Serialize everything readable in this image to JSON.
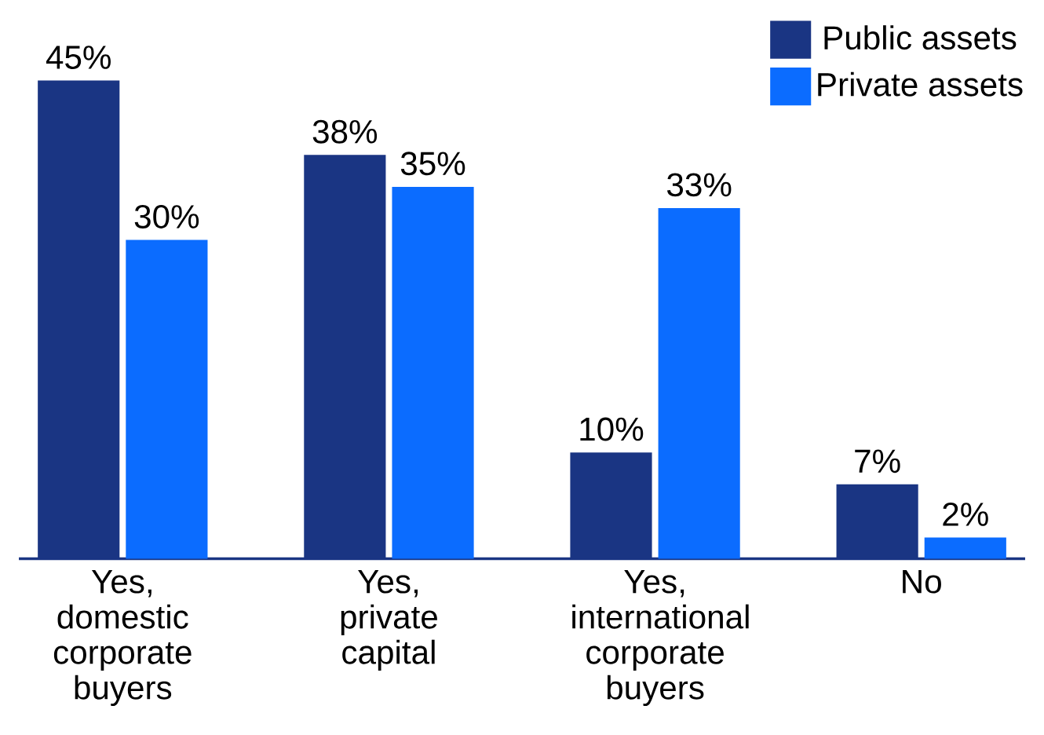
{
  "chart_data": {
    "type": "bar",
    "categories": [
      "Yes, domestic corporate buyers",
      "Yes, private capital",
      "Yes, international corporate buyers",
      "No"
    ],
    "series": [
      {
        "name": "Public assets",
        "color": "#1a3583",
        "values": [
          45,
          38,
          10,
          7
        ],
        "value_labels": [
          "45%",
          "38%",
          "10%",
          "7%"
        ]
      },
      {
        "name": "Private assets",
        "color": "#0b6cff",
        "values": [
          30,
          35,
          33,
          2
        ],
        "value_labels": [
          "30%",
          "35%",
          "33%",
          "2%"
        ]
      }
    ],
    "legend": "top right"
  }
}
